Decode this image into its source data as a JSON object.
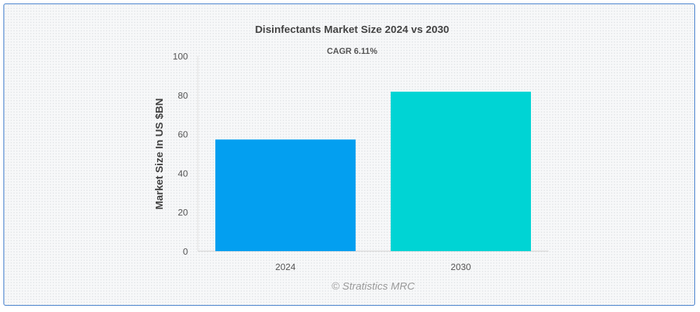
{
  "chart_data": {
    "type": "bar",
    "title": "Disinfectants Market Size 2024 vs 2030",
    "subtitle": "CAGR 6.11%",
    "ylabel": "Market Size In US $BN",
    "xlabel": "",
    "categories": [
      "2024",
      "2030"
    ],
    "values": [
      57.2,
      81.7
    ],
    "colors": [
      "#039ff0",
      "#00d4d4"
    ],
    "ylim": [
      0,
      100
    ],
    "yticks": [
      0,
      20,
      40,
      60,
      80,
      100
    ],
    "grid": false,
    "legend": "none"
  },
  "credit": "© Stratistics MRC"
}
